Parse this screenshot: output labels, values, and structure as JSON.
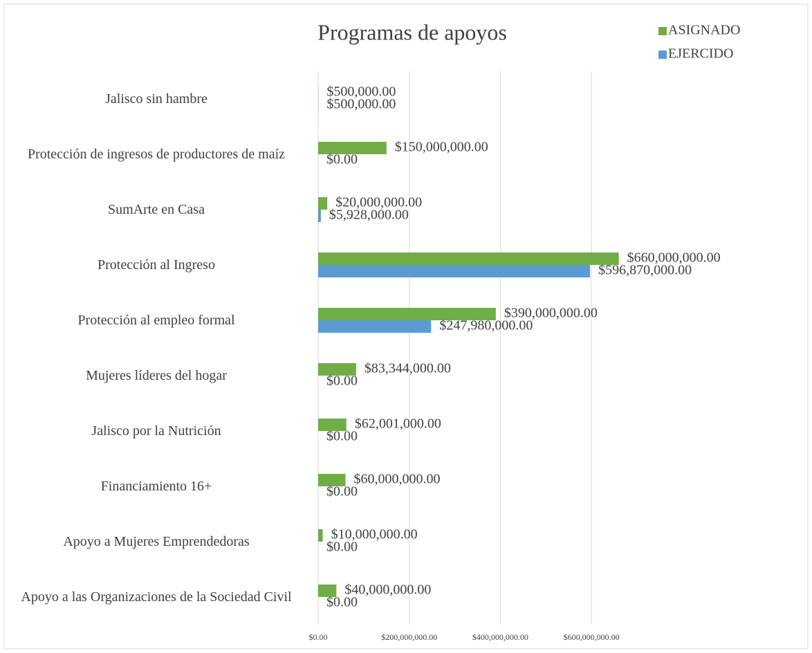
{
  "chart_data": {
    "type": "hbar",
    "title": "Programas de apoyos",
    "categories": [
      "Jalisco sin hambre",
      "Protección de ingresos de productores de maíz",
      "SumArte en Casa",
      "Protección al Ingreso",
      "Protección al empleo formal",
      "Mujeres líderes del hogar",
      "Jalisco por la Nutrición",
      "Financiamiento 16+",
      "Apoyo a Mujeres Emprendedoras",
      "Apoyo a las Organizaciones de la Sociedad Civil"
    ],
    "series": [
      {
        "name": "ASIGNADO",
        "color": "#70ad47",
        "values": [
          500000,
          150000000,
          20000000,
          660000000,
          390000000,
          83344000,
          62001000,
          60000000,
          10000000,
          40000000
        ],
        "value_labels": [
          "$500,000.00",
          "$150,000,000.00",
          "$20,000,000.00",
          "$660,000,000.00",
          "$390,000,000.00",
          "$83,344,000.00",
          "$62,001,000.00",
          "$60,000,000.00",
          "$10,000,000.00",
          "$40,000,000.00"
        ]
      },
      {
        "name": "EJERCIDO",
        "color": "#5b9bd5",
        "values": [
          500000,
          0,
          5928000,
          596870000,
          247980000,
          0,
          0,
          0,
          0,
          0
        ],
        "value_labels": [
          "$500,000.00",
          "$0.00",
          "$5,928,000.00",
          "$596,870,000.00",
          "$247,980,000.00",
          "$0.00",
          "$0.00",
          "$0.00",
          "$0.00",
          "$0.00"
        ]
      }
    ],
    "xlim": [
      0,
      700000000
    ],
    "xticks": [
      {
        "value": 0,
        "label": "$0.00"
      },
      {
        "value": 200000000,
        "label": "$200,000,000.00"
      },
      {
        "value": 400000000,
        "label": "$400,000,000.00"
      },
      {
        "value": 600000000,
        "label": "$600,000,000.00"
      }
    ],
    "grid": true,
    "legend": "top-right"
  }
}
